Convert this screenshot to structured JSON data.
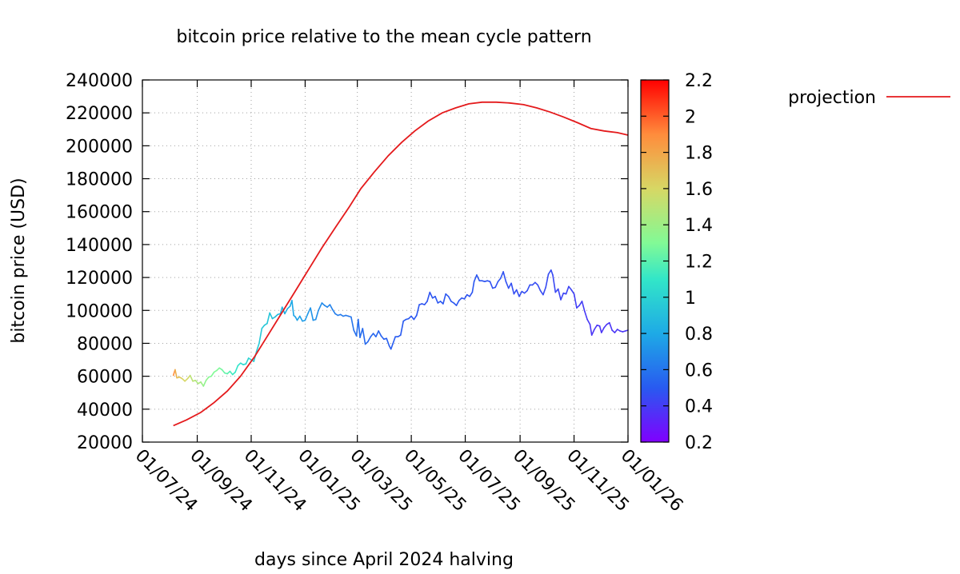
{
  "chart_data": {
    "type": "line",
    "title": "bitcoin price relative to the mean cycle pattern",
    "xlabel": "days since April 2024 halving",
    "ylabel": "bitcoin price (USD)",
    "xlim": [
      "2024-07-01",
      "2026-01-01"
    ],
    "ylim": [
      20000,
      240000
    ],
    "x_ticks": [
      "01/07/24",
      "01/09/24",
      "01/11/24",
      "01/01/25",
      "01/03/25",
      "01/05/25",
      "01/07/25",
      "01/09/25",
      "01/11/25",
      "01/01/26"
    ],
    "y_ticks": [
      20000,
      40000,
      60000,
      80000,
      100000,
      120000,
      140000,
      160000,
      180000,
      200000,
      220000,
      240000
    ],
    "grid": true,
    "legend_position": "top-right, outside plot",
    "colorbar": {
      "range": [
        0.2,
        2.2
      ],
      "ticks": [
        0.2,
        0.4,
        0.6,
        0.8,
        1,
        1.2,
        1.4,
        1.6,
        1.8,
        2,
        2.2
      ],
      "palette": "rainbow"
    },
    "series": [
      {
        "name": "projection",
        "color": "#e41a1c",
        "points": [
          [
            "2024-08-05",
            30000
          ],
          [
            "2024-08-20",
            33500
          ],
          [
            "2024-09-05",
            38000
          ],
          [
            "2024-09-20",
            44000
          ],
          [
            "2024-10-05",
            51000
          ],
          [
            "2024-10-20",
            60000
          ],
          [
            "2024-11-05",
            72000
          ],
          [
            "2024-11-20",
            85000
          ],
          [
            "2024-12-05",
            98000
          ],
          [
            "2024-12-20",
            111000
          ],
          [
            "2025-01-05",
            125000
          ],
          [
            "2025-01-20",
            138000
          ],
          [
            "2025-02-05",
            151000
          ],
          [
            "2025-02-20",
            163000
          ],
          [
            "2025-03-05",
            174000
          ],
          [
            "2025-03-20",
            184000
          ],
          [
            "2025-04-05",
            194000
          ],
          [
            "2025-04-20",
            202000
          ],
          [
            "2025-05-05",
            209000
          ],
          [
            "2025-05-20",
            215000
          ],
          [
            "2025-06-05",
            220000
          ],
          [
            "2025-06-20",
            223000
          ],
          [
            "2025-07-05",
            225500
          ],
          [
            "2025-07-20",
            226500
          ],
          [
            "2025-08-05",
            226500
          ],
          [
            "2025-08-20",
            226000
          ],
          [
            "2025-09-05",
            225000
          ],
          [
            "2025-09-20",
            223000
          ],
          [
            "2025-10-05",
            220500
          ],
          [
            "2025-10-20",
            217500
          ],
          [
            "2025-11-05",
            214000
          ],
          [
            "2025-11-20",
            210500
          ],
          [
            "2025-12-05",
            209000
          ],
          [
            "2025-12-20",
            208000
          ],
          [
            "2026-01-01",
            206500
          ]
        ]
      },
      {
        "name": "",
        "colored_by": "ratio to projection (colorbar)",
        "points": [
          [
            "2024-08-05",
            60500,
            2.0
          ],
          [
            "2024-08-07",
            64000,
            1.9
          ],
          [
            "2024-08-09",
            59000,
            1.75
          ],
          [
            "2024-08-12",
            59500,
            1.7
          ],
          [
            "2024-08-15",
            58500,
            1.65
          ],
          [
            "2024-08-18",
            57000,
            1.6
          ],
          [
            "2024-08-21",
            58500,
            1.6
          ],
          [
            "2024-08-24",
            60500,
            1.58
          ],
          [
            "2024-08-27",
            57000,
            1.5
          ],
          [
            "2024-08-30",
            57500,
            1.5
          ],
          [
            "2024-09-02",
            55500,
            1.45
          ],
          [
            "2024-09-05",
            56500,
            1.45
          ],
          [
            "2024-09-08",
            54000,
            1.4
          ],
          [
            "2024-09-11",
            57500,
            1.35
          ],
          [
            "2024-09-14",
            59500,
            1.35
          ],
          [
            "2024-09-17",
            60000,
            1.3
          ],
          [
            "2024-09-20",
            62500,
            1.3
          ],
          [
            "2024-09-23",
            63500,
            1.3
          ],
          [
            "2024-09-26",
            65000,
            1.3
          ],
          [
            "2024-09-29",
            64000,
            1.28
          ],
          [
            "2024-10-02",
            62000,
            1.25
          ],
          [
            "2024-10-05",
            61500,
            1.22
          ],
          [
            "2024-10-08",
            63000,
            1.2
          ],
          [
            "2024-10-11",
            61000,
            1.15
          ],
          [
            "2024-10-14",
            62500,
            1.12
          ],
          [
            "2024-10-17",
            66500,
            1.1
          ],
          [
            "2024-10-20",
            68000,
            1.08
          ],
          [
            "2024-10-23",
            67000,
            1.05
          ],
          [
            "2024-10-26",
            67500,
            1.03
          ],
          [
            "2024-10-29",
            71000,
            1.02
          ],
          [
            "2024-11-01",
            70000,
            1.0
          ],
          [
            "2024-11-04",
            69000,
            0.98
          ],
          [
            "2024-11-07",
            75000,
            0.97
          ],
          [
            "2024-11-10",
            80000,
            0.96
          ],
          [
            "2024-11-13",
            89000,
            0.95
          ],
          [
            "2024-11-16",
            91000,
            0.95
          ],
          [
            "2024-11-19",
            92000,
            0.94
          ],
          [
            "2024-11-22",
            98500,
            0.94
          ],
          [
            "2024-11-25",
            95000,
            0.92
          ],
          [
            "2024-11-28",
            96000,
            0.9
          ],
          [
            "2024-12-01",
            97500,
            0.88
          ],
          [
            "2024-12-04",
            98000,
            0.86
          ],
          [
            "2024-12-06",
            102000,
            0.85
          ],
          [
            "2024-12-09",
            98000,
            0.83
          ],
          [
            "2024-12-12",
            101000,
            0.82
          ],
          [
            "2024-12-15",
            102500,
            0.82
          ],
          [
            "2024-12-17",
            106000,
            0.81
          ],
          [
            "2024-12-19",
            97000,
            0.79
          ],
          [
            "2024-12-21",
            96000,
            0.78
          ],
          [
            "2024-12-23",
            94000,
            0.77
          ],
          [
            "2024-12-26",
            96500,
            0.77
          ],
          [
            "2024-12-29",
            93500,
            0.76
          ],
          [
            "2025-01-01",
            94000,
            0.75
          ],
          [
            "2025-01-04",
            98000,
            0.74
          ],
          [
            "2025-01-07",
            101500,
            0.73
          ],
          [
            "2025-01-10",
            94000,
            0.72
          ],
          [
            "2025-01-13",
            94500,
            0.71
          ],
          [
            "2025-01-16",
            100000,
            0.7
          ],
          [
            "2025-01-20",
            104500,
            0.69
          ],
          [
            "2025-01-23",
            103000,
            0.68
          ],
          [
            "2025-01-26",
            102000,
            0.67
          ],
          [
            "2025-01-29",
            103500,
            0.66
          ],
          [
            "2025-02-01",
            100500,
            0.65
          ],
          [
            "2025-02-04",
            98000,
            0.64
          ],
          [
            "2025-02-07",
            97000,
            0.63
          ],
          [
            "2025-02-10",
            97500,
            0.63
          ],
          [
            "2025-02-13",
            96500,
            0.62
          ],
          [
            "2025-02-16",
            97000,
            0.62
          ],
          [
            "2025-02-19",
            96500,
            0.61
          ],
          [
            "2025-02-22",
            96000,
            0.61
          ],
          [
            "2025-02-25",
            88000,
            0.6
          ],
          [
            "2025-02-28",
            84500,
            0.58
          ],
          [
            "2025-03-02",
            94500,
            0.58
          ],
          [
            "2025-03-04",
            83500,
            0.57
          ],
          [
            "2025-03-07",
            89000,
            0.57
          ],
          [
            "2025-03-10",
            79500,
            0.56
          ],
          [
            "2025-03-13",
            81000,
            0.56
          ],
          [
            "2025-03-16",
            84000,
            0.55
          ],
          [
            "2025-03-19",
            86000,
            0.55
          ],
          [
            "2025-03-22",
            84000,
            0.54
          ],
          [
            "2025-03-25",
            87500,
            0.54
          ],
          [
            "2025-03-28",
            84500,
            0.53
          ],
          [
            "2025-03-31",
            82500,
            0.53
          ],
          [
            "2025-04-03",
            83000,
            0.52
          ],
          [
            "2025-04-06",
            78500,
            0.52
          ],
          [
            "2025-04-08",
            76500,
            0.51
          ],
          [
            "2025-04-10",
            79500,
            0.51
          ],
          [
            "2025-04-13",
            84000,
            0.51
          ],
          [
            "2025-04-16",
            84000,
            0.5
          ],
          [
            "2025-04-19",
            85000,
            0.5
          ],
          [
            "2025-04-22",
            93500,
            0.5
          ],
          [
            "2025-04-25",
            94500,
            0.5
          ],
          [
            "2025-04-28",
            95000,
            0.5
          ],
          [
            "2025-05-01",
            96500,
            0.49
          ],
          [
            "2025-05-04",
            94500,
            0.49
          ],
          [
            "2025-05-07",
            97000,
            0.49
          ],
          [
            "2025-05-10",
            103500,
            0.49
          ],
          [
            "2025-05-13",
            104000,
            0.48
          ],
          [
            "2025-05-16",
            103500,
            0.48
          ],
          [
            "2025-05-19",
            105500,
            0.48
          ],
          [
            "2025-05-22",
            111000,
            0.48
          ],
          [
            "2025-05-25",
            107500,
            0.48
          ],
          [
            "2025-05-28",
            108500,
            0.49
          ],
          [
            "2025-05-31",
            104500,
            0.49
          ],
          [
            "2025-06-03",
            105500,
            0.49
          ],
          [
            "2025-06-06",
            104000,
            0.49
          ],
          [
            "2025-06-09",
            110000,
            0.49
          ],
          [
            "2025-06-12",
            108500,
            0.49
          ],
          [
            "2025-06-15",
            105500,
            0.49
          ],
          [
            "2025-06-18",
            104500,
            0.49
          ],
          [
            "2025-06-21",
            103000,
            0.49
          ],
          [
            "2025-06-24",
            106000,
            0.49
          ],
          [
            "2025-06-27",
            107500,
            0.49
          ],
          [
            "2025-06-30",
            107000,
            0.48
          ],
          [
            "2025-07-03",
            109500,
            0.48
          ],
          [
            "2025-07-06",
            108500,
            0.48
          ],
          [
            "2025-07-09",
            111000,
            0.48
          ],
          [
            "2025-07-11",
            117500,
            0.49
          ],
          [
            "2025-07-14",
            121500,
            0.49
          ],
          [
            "2025-07-17",
            118000,
            0.49
          ],
          [
            "2025-07-20",
            118000,
            0.49
          ],
          [
            "2025-07-23",
            117500,
            0.48
          ],
          [
            "2025-07-26",
            118000,
            0.48
          ],
          [
            "2025-07-29",
            117500,
            0.48
          ],
          [
            "2025-08-01",
            113500,
            0.47
          ],
          [
            "2025-08-04",
            114000,
            0.47
          ],
          [
            "2025-08-07",
            117500,
            0.47
          ],
          [
            "2025-08-10",
            119500,
            0.48
          ],
          [
            "2025-08-13",
            123500,
            0.48
          ],
          [
            "2025-08-16",
            117500,
            0.47
          ],
          [
            "2025-08-19",
            113500,
            0.47
          ],
          [
            "2025-08-22",
            116500,
            0.47
          ],
          [
            "2025-08-25",
            110000,
            0.46
          ],
          [
            "2025-08-28",
            112500,
            0.46
          ],
          [
            "2025-08-31",
            108500,
            0.46
          ],
          [
            "2025-09-03",
            111500,
            0.46
          ],
          [
            "2025-09-06",
            110500,
            0.46
          ],
          [
            "2025-09-09",
            112000,
            0.46
          ],
          [
            "2025-09-12",
            115500,
            0.46
          ],
          [
            "2025-09-15",
            115500,
            0.46
          ],
          [
            "2025-09-18",
            117000,
            0.46
          ],
          [
            "2025-09-21",
            115500,
            0.45
          ],
          [
            "2025-09-24",
            112000,
            0.45
          ],
          [
            "2025-09-27",
            109500,
            0.45
          ],
          [
            "2025-09-30",
            114000,
            0.45
          ],
          [
            "2025-10-03",
            122000,
            0.45
          ],
          [
            "2025-10-06",
            124500,
            0.46
          ],
          [
            "2025-10-08",
            121500,
            0.45
          ],
          [
            "2025-10-11",
            111000,
            0.44
          ],
          [
            "2025-10-14",
            113000,
            0.44
          ],
          [
            "2025-10-17",
            106500,
            0.43
          ],
          [
            "2025-10-20",
            110500,
            0.43
          ],
          [
            "2025-10-23",
            110000,
            0.43
          ],
          [
            "2025-10-26",
            114500,
            0.43
          ],
          [
            "2025-10-29",
            112500,
            0.43
          ],
          [
            "2025-11-01",
            110000,
            0.42
          ],
          [
            "2025-11-04",
            101500,
            0.41
          ],
          [
            "2025-11-07",
            103000,
            0.41
          ],
          [
            "2025-11-10",
            105500,
            0.41
          ],
          [
            "2025-11-13",
            99500,
            0.4
          ],
          [
            "2025-11-16",
            94500,
            0.39
          ],
          [
            "2025-11-19",
            91500,
            0.39
          ],
          [
            "2025-11-21",
            85000,
            0.38
          ],
          [
            "2025-11-24",
            88500,
            0.38
          ],
          [
            "2025-11-27",
            91000,
            0.38
          ],
          [
            "2025-11-30",
            90500,
            0.38
          ],
          [
            "2025-12-02",
            86500,
            0.38
          ],
          [
            "2025-12-05",
            89500,
            0.38
          ],
          [
            "2025-12-08",
            91500,
            0.38
          ],
          [
            "2025-12-11",
            92500,
            0.38
          ],
          [
            "2025-12-14",
            88000,
            0.38
          ],
          [
            "2025-12-17",
            86500,
            0.38
          ],
          [
            "2025-12-20",
            88500,
            0.38
          ],
          [
            "2025-12-23",
            87500,
            0.38
          ],
          [
            "2025-12-26",
            87000,
            0.38
          ],
          [
            "2025-12-29",
            87500,
            0.38
          ],
          [
            "2026-01-01",
            88000,
            0.38
          ]
        ]
      }
    ]
  }
}
